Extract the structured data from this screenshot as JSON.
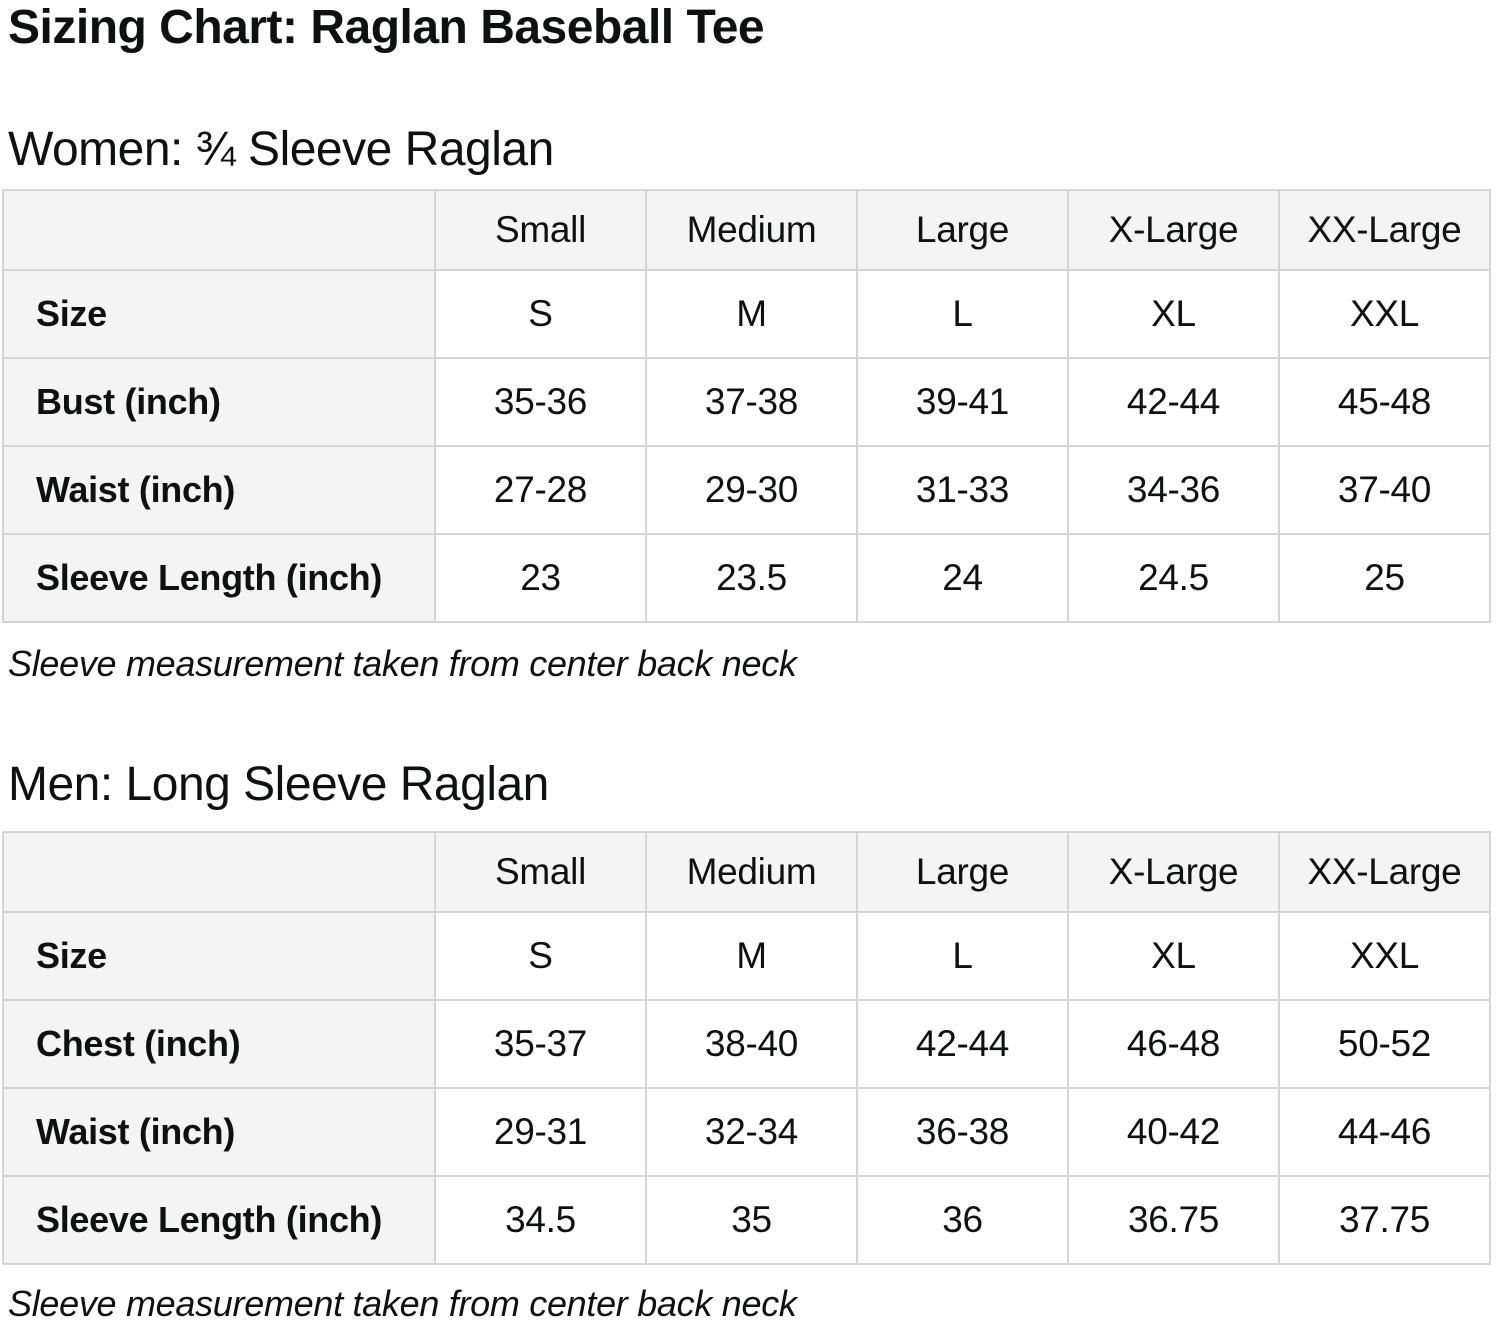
{
  "page": {
    "title": "Sizing Chart: Raglan Baseball Tee"
  },
  "colors": {
    "text": "#0f1111",
    "header_background": "#f5f4f4",
    "cell_background": "#ffffff",
    "border": "#d5d5d5"
  },
  "sections": [
    {
      "heading": "Women: ¾ Sleeve Raglan",
      "note": "Sleeve measurement taken from center back neck",
      "table": {
        "columns": [
          "",
          "Small",
          "Medium",
          "Large",
          "X-Large",
          "XX-Large"
        ],
        "rows": [
          {
            "label": "Size",
            "values": [
              "S",
              "M",
              "L",
              "XL",
              "XXL"
            ]
          },
          {
            "label": "Bust (inch)",
            "values": [
              "35-36",
              "37-38",
              "39-41",
              "42-44",
              "45-48"
            ]
          },
          {
            "label": "Waist (inch)",
            "values": [
              "27-28",
              "29-30",
              "31-33",
              "34-36",
              "37-40"
            ]
          },
          {
            "label": "Sleeve Length (inch)",
            "values": [
              "23",
              "23.5",
              "24",
              "24.5",
              "25"
            ]
          }
        ]
      }
    },
    {
      "heading": "Men: Long Sleeve Raglan",
      "note": "Sleeve measurement taken from center back neck",
      "table": {
        "columns": [
          "",
          "Small",
          "Medium",
          "Large",
          "X-Large",
          "XX-Large"
        ],
        "rows": [
          {
            "label": "Size",
            "values": [
              "S",
              "M",
              "L",
              "XL",
              "XXL"
            ]
          },
          {
            "label": "Chest (inch)",
            "values": [
              "35-37",
              "38-40",
              "42-44",
              "46-48",
              "50-52"
            ]
          },
          {
            "label": "Waist (inch)",
            "values": [
              "29-31",
              "32-34",
              "36-38",
              "40-42",
              "44-46"
            ]
          },
          {
            "label": "Sleeve Length (inch)",
            "values": [
              "34.5",
              "35",
              "36",
              "36.75",
              "37.75"
            ]
          }
        ]
      }
    }
  ]
}
